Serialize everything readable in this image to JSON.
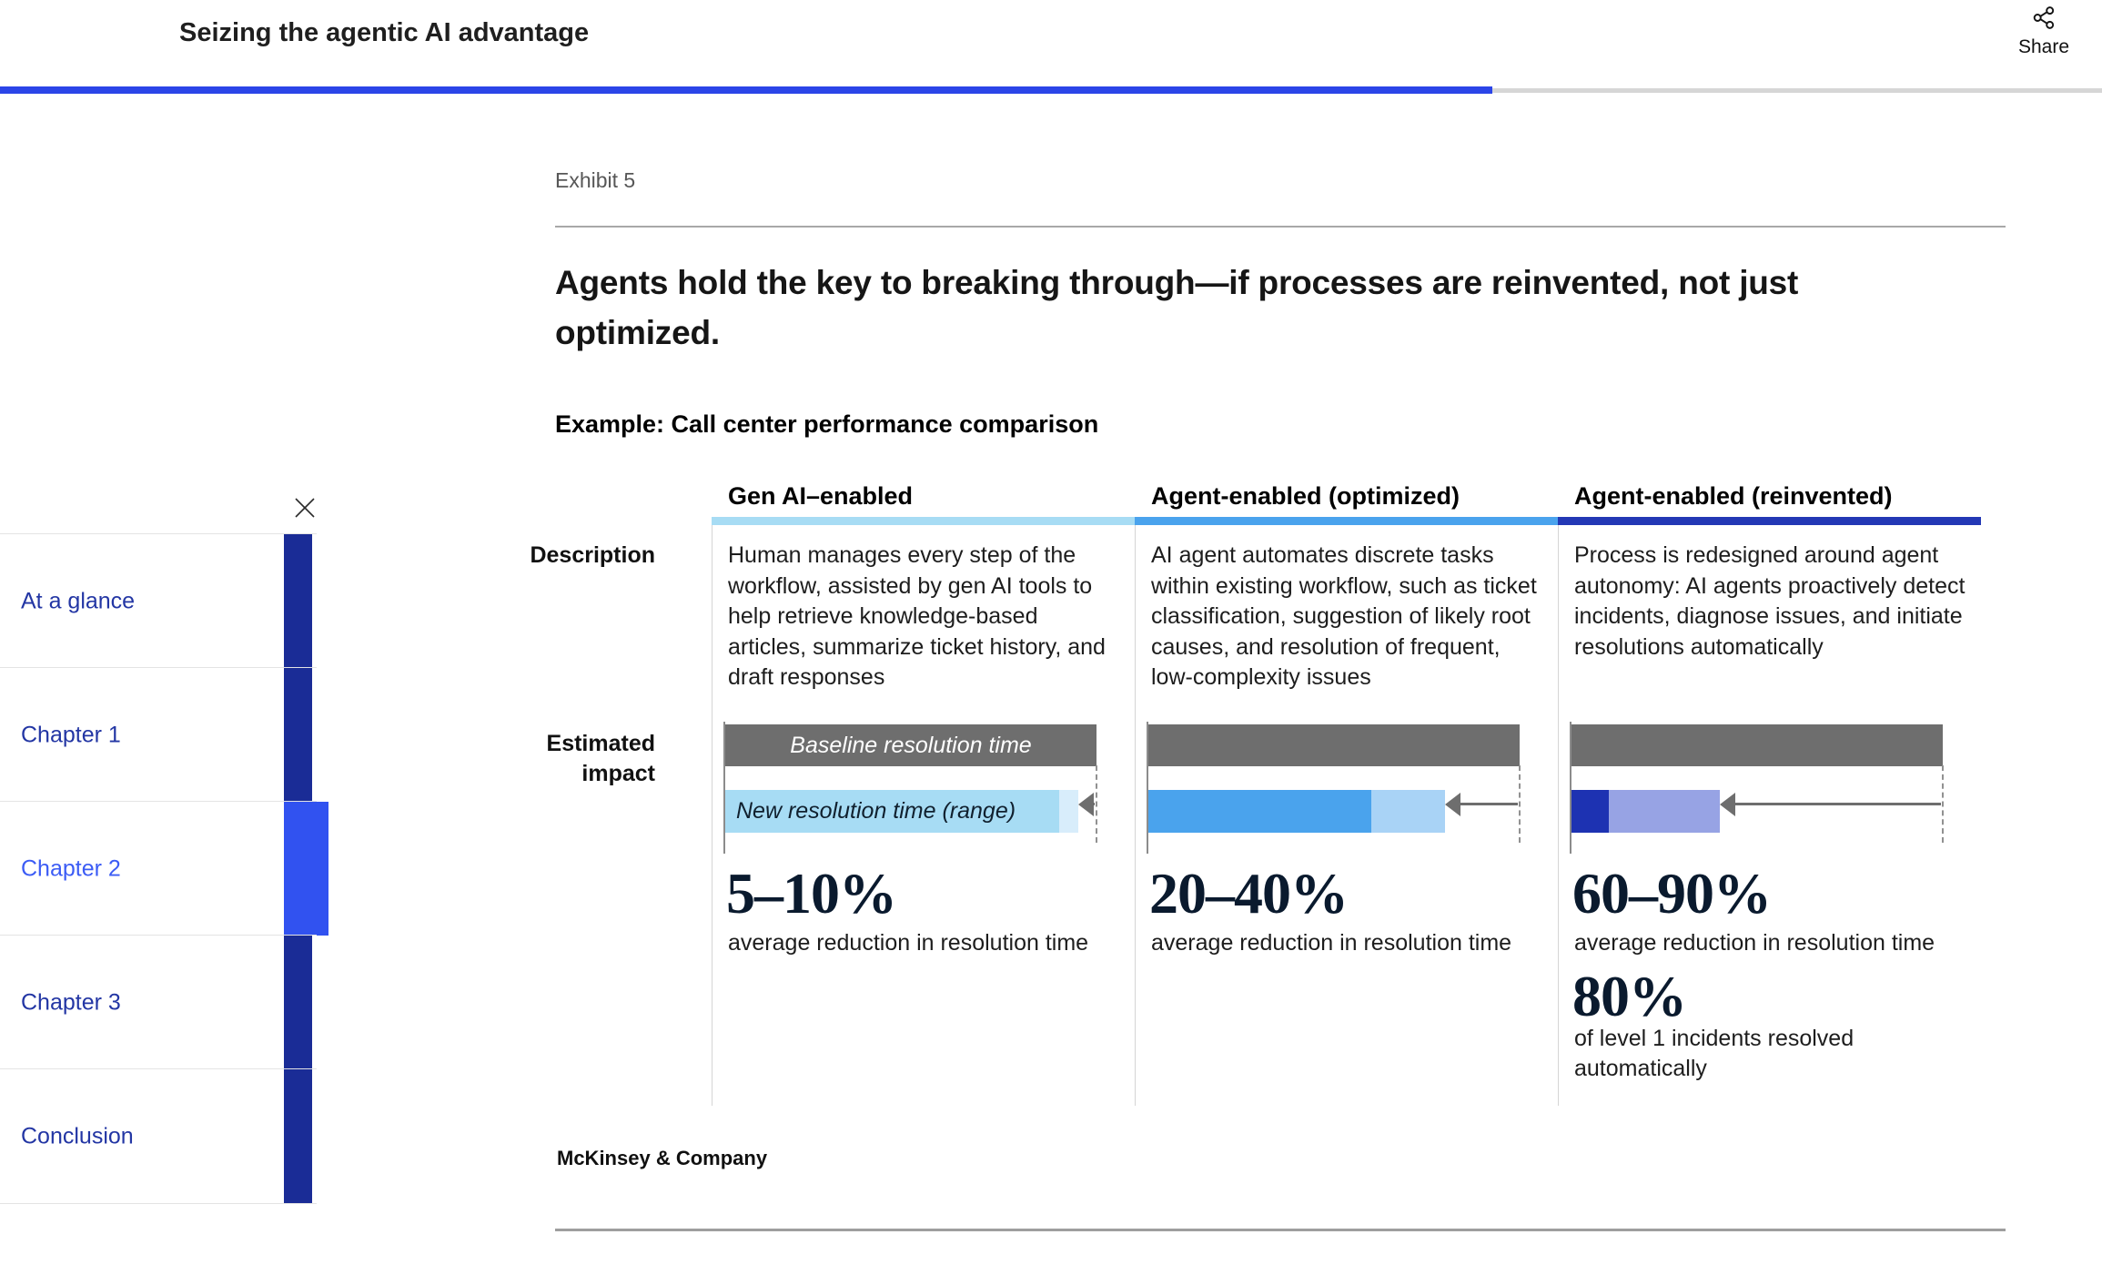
{
  "header": {
    "title": "Seizing the agentic AI advantage",
    "share_label": "Share",
    "share_icon": "share-icon",
    "progress_color": "#2b45e8"
  },
  "progress": {
    "percent": 71
  },
  "sidebar": {
    "close_icon": "close-icon",
    "items": [
      {
        "label": "At a glance",
        "active": false
      },
      {
        "label": "Chapter 1",
        "active": false
      },
      {
        "label": "Chapter 2",
        "active": true
      },
      {
        "label": "Chapter 3",
        "active": false
      },
      {
        "label": "Conclusion",
        "active": false
      }
    ],
    "bar_color": "#1a2c96",
    "active_bar_color": "#3152f0"
  },
  "exhibit": {
    "label": "Exhibit 5",
    "heading": "Agents hold the key to breaking through—if processes are reinvented, not just optimized.",
    "subtitle": "Example: Call center performance comparison",
    "row_labels": {
      "description": "Description",
      "impact": "Estimated impact"
    },
    "columns": [
      {
        "title": "Gen AI–enabled",
        "accent": "#a7dcf4",
        "bar_solid": "#a7dcf4",
        "bar_light": "#d8edfb",
        "description": "Human manages every step of the workflow, assisted by gen AI tools to help retrieve knowledge-based articles, summarize ticket history, and draft responses",
        "stat": "5–10%",
        "stat_caption": "average reduction in resolution time"
      },
      {
        "title": "Agent-enabled (optimized)",
        "accent": "#4aa3ed",
        "bar_solid": "#4aa3ed",
        "bar_light": "#a9d3f6",
        "description": "AI agent automates discrete tasks within existing workflow, such as ticket classification, suggestion of likely root causes, and resolution of frequent, low-complexity issues",
        "stat": "20–40%",
        "stat_caption": "average reduction in resolution time"
      },
      {
        "title": "Agent-enabled (reinvented)",
        "accent": "#2338b5",
        "bar_solid": "#1d32b2",
        "bar_light": "#97a3e4",
        "description": "Process is redesigned around agent autonomy: AI agents proactively detect incidents, diagnose issues, and initiate resolutions automatically",
        "stat": "60–90%",
        "stat_caption": "average reduction in resolution time",
        "extra_stat": "80%",
        "extra_caption": "of level 1 incidents resolved automatically"
      }
    ],
    "footer": "McKinsey & Company"
  },
  "chart_data": {
    "type": "bar",
    "title": "Example: Call center performance comparison",
    "categories": [
      "Gen AI–enabled",
      "Agent-enabled (optimized)",
      "Agent-enabled (reinvented)"
    ],
    "baseline": {
      "label": "Baseline resolution time",
      "value_pct": 100
    },
    "new_resolution": {
      "label": "New resolution time (range)",
      "ranges_pct_of_baseline": [
        [
          90,
          95
        ],
        [
          60,
          80
        ],
        [
          10,
          40
        ]
      ]
    },
    "reduction_pct": [
      [
        5,
        10
      ],
      [
        20,
        40
      ],
      [
        60,
        90
      ]
    ],
    "stat_labels": [
      "5–10%",
      "20–40%",
      "60–90%"
    ],
    "stat_caption": "average reduction in resolution time",
    "extra_stat": {
      "column": "Agent-enabled (reinvented)",
      "value_pct": 80,
      "caption": "of level 1 incidents resolved automatically"
    },
    "legend_position": "in-bar",
    "grid": false
  }
}
